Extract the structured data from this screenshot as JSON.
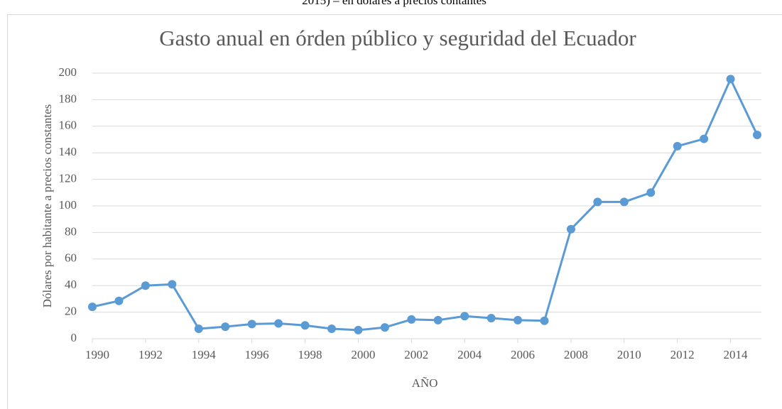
{
  "caption": "2015) – en dólares a precios contantes",
  "chart_data": {
    "type": "line",
    "title": "Gasto anual en órden público y seguridad del Ecuador",
    "x_label": "AÑO",
    "y_label": "Dólares por habitante a precios constantes",
    "x": [
      1990,
      1991,
      1992,
      1993,
      1994,
      1995,
      1996,
      1997,
      1998,
      1999,
      2000,
      2001,
      2002,
      2003,
      2004,
      2005,
      2006,
      2007,
      2008,
      2009,
      2010,
      2011,
      2012,
      2013,
      2014,
      2015
    ],
    "series": [
      {
        "color": "#5b9bd5",
        "values": [
          24,
          28.5,
          40,
          41,
          7.5,
          9,
          11,
          11.5,
          10,
          7.5,
          6.5,
          8.5,
          14.5,
          14,
          17,
          15.5,
          14,
          13.5,
          82.5,
          103,
          103,
          110,
          145,
          150.5,
          195.5,
          153.5
        ]
      }
    ],
    "xlim": [
      1990,
      2015
    ],
    "xticks": [
      1990,
      1992,
      1994,
      1996,
      1998,
      2000,
      2002,
      2004,
      2006,
      2008,
      2010,
      2012,
      2014
    ],
    "ylim": [
      0,
      200
    ],
    "yticks": [
      0,
      20,
      40,
      60,
      80,
      100,
      120,
      140,
      160,
      180,
      200
    ],
    "grid": true
  }
}
